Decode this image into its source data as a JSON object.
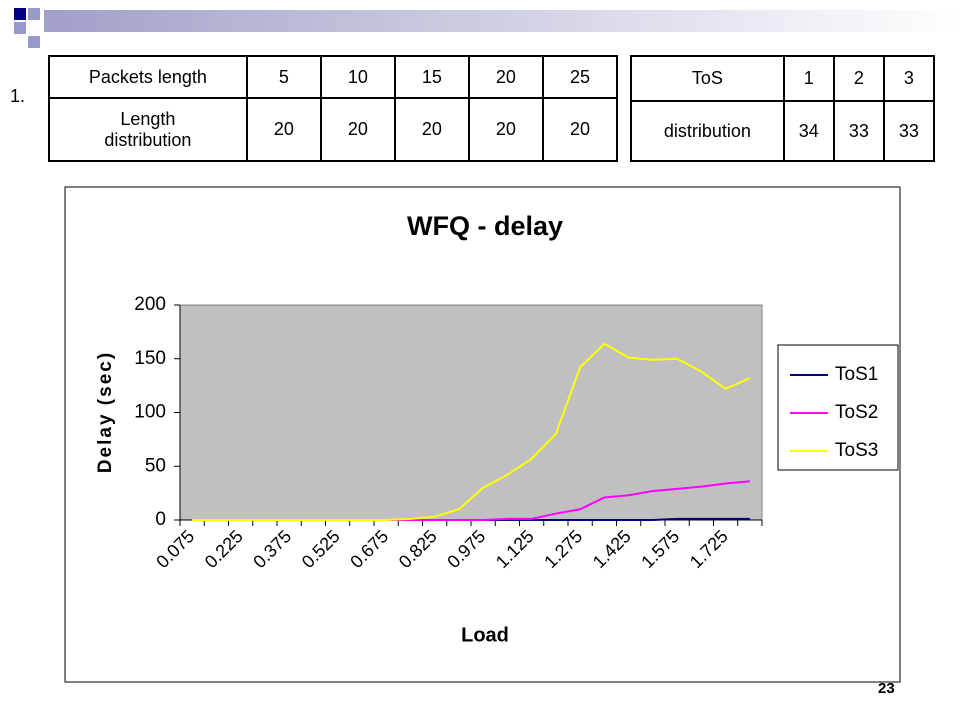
{
  "item_label": "1.",
  "slide_number": "23",
  "tables": [
    {
      "rows": [
        [
          "Packets length",
          5,
          10,
          15,
          20,
          25
        ],
        [
          "Length distribution",
          20,
          20,
          20,
          20,
          20
        ]
      ]
    },
    {
      "rows": [
        [
          "ToS",
          1,
          2,
          3
        ],
        [
          "distribution",
          34,
          33,
          33
        ]
      ]
    }
  ],
  "chart_data": {
    "type": "line",
    "title": "WFQ - delay",
    "x_label": "Load",
    "y_label": "Delay (sec)",
    "categories": [
      "0.075",
      null,
      "0.225",
      null,
      "0.375",
      null,
      "0.525",
      null,
      "0.675",
      null,
      "0.825",
      null,
      "0.975",
      null,
      "1.125",
      null,
      "1.275",
      null,
      "1.425",
      null,
      "1.575",
      null,
      "1.725",
      null
    ],
    "series": [
      {
        "name": "ToS1",
        "color": "#000080",
        "values": [
          0,
          0,
          0,
          0,
          0,
          0,
          0,
          0,
          0,
          0,
          0,
          0,
          0,
          0,
          0,
          0,
          0,
          0,
          0,
          0,
          1,
          1,
          1,
          1
        ]
      },
      {
        "name": "ToS2",
        "color": "#ff00ff",
        "values": [
          0,
          0,
          0,
          0,
          0,
          0,
          0,
          0,
          0,
          0,
          0,
          0,
          0,
          1,
          1,
          6,
          10,
          21,
          23,
          27,
          29,
          31,
          34,
          36
        ]
      },
      {
        "name": "ToS3",
        "color": "#ffff00",
        "values": [
          0,
          0,
          0,
          0,
          0,
          0,
          0,
          0,
          0,
          1,
          3,
          10,
          30,
          42,
          57,
          80,
          142,
          164,
          151,
          149,
          150,
          138,
          122,
          132
        ]
      }
    ],
    "ylim": [
      0,
      200
    ],
    "yticks": [
      0,
      50,
      100,
      150,
      200
    ],
    "grid": false,
    "plot_background": "#c0c0c0",
    "legend": "right"
  }
}
